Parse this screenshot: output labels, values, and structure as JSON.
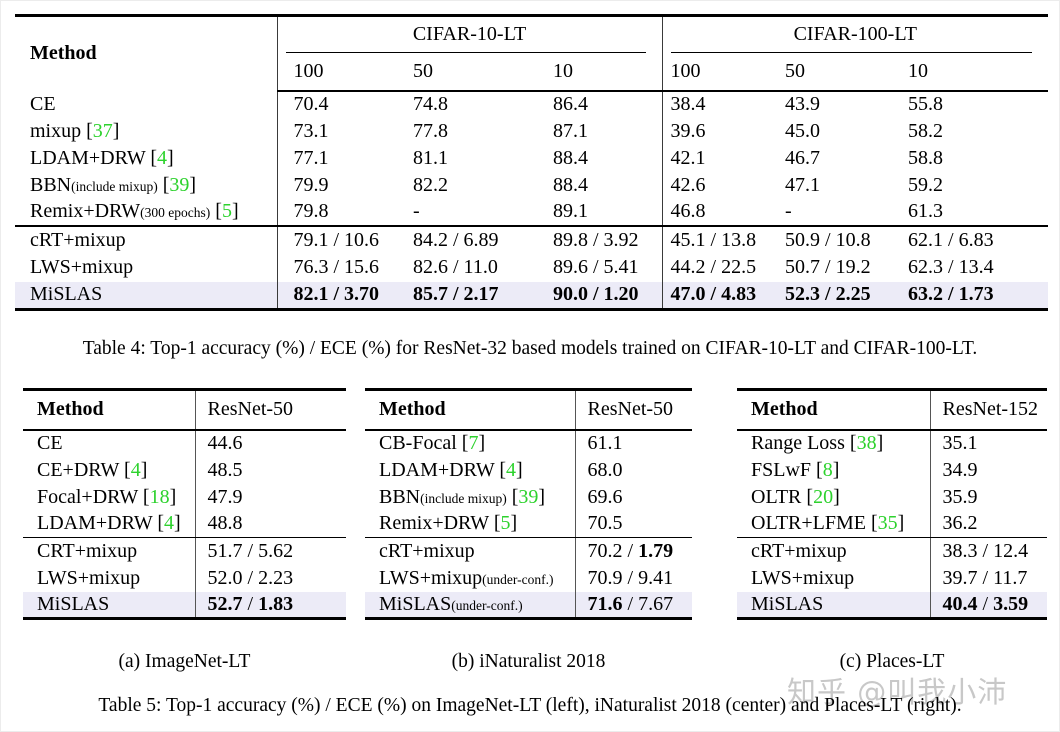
{
  "colors": {
    "citation_green": "#2dd22d",
    "highlight_row": "#ecebf7",
    "watermark_gray": "#c8c8c8"
  },
  "table4": {
    "method_label": "Method",
    "groups": [
      {
        "label": "CIFAR-10-LT",
        "cols": [
          "100",
          "50",
          "10"
        ]
      },
      {
        "label": "CIFAR-100-LT",
        "cols": [
          "100",
          "50",
          "10"
        ]
      }
    ],
    "section1": [
      {
        "method": "CE",
        "values": [
          "70.4",
          "74.8",
          "86.4",
          "38.4",
          "43.9",
          "55.8"
        ]
      },
      {
        "method": "mixup",
        "cite": "37",
        "values": [
          "73.1",
          "77.8",
          "87.1",
          "39.6",
          "45.0",
          "58.2"
        ]
      },
      {
        "method": "LDAM+DRW",
        "cite": "4",
        "values": [
          "77.1",
          "81.1",
          "88.4",
          "42.1",
          "46.7",
          "58.8"
        ]
      },
      {
        "method": "BBN",
        "sub": "(include mixup)",
        "cite": "39",
        "values": [
          "79.9",
          "82.2",
          "88.4",
          "42.6",
          "47.1",
          "59.2"
        ]
      },
      {
        "method": "Remix+DRW",
        "sub": "(300 epochs)",
        "cite": "5",
        "values": [
          "79.8",
          "-",
          "89.1",
          "46.8",
          "-",
          "61.3"
        ]
      }
    ],
    "section2": [
      {
        "method": "cRT+mixup",
        "values": [
          "79.1 / 10.6",
          "84.2 / 6.89",
          "89.8 / 3.92",
          "45.1 / 13.8",
          "50.9 / 10.8",
          "62.1 / 6.83"
        ]
      },
      {
        "method": "LWS+mixup",
        "values": [
          "76.3 / 15.6",
          "82.6 / 11.0",
          "89.6 / 5.41",
          "44.2 / 22.5",
          "50.7 / 19.2",
          "62.3 / 13.4"
        ]
      },
      {
        "method": "MiSLAS",
        "values": [
          "82.1 / 3.70",
          "85.7 / 2.17",
          "90.0 / 1.20",
          "47.0 / 4.83",
          "52.3 / 2.25",
          "63.2 / 1.73"
        ],
        "bold": true,
        "highlight": true
      }
    ],
    "caption": "Table 4: Top-1 accuracy (%) / ECE (%) for ResNet-32 based models trained on CIFAR-10-LT and CIFAR-100-LT."
  },
  "table5": {
    "subtables": [
      {
        "caption": "(a) ImageNet-LT",
        "method_label": "Method",
        "backbone_label": "ResNet-50",
        "section1": [
          {
            "method": "CE",
            "value": "44.6"
          },
          {
            "method": "CE+DRW",
            "cite": "4",
            "value": "48.5"
          },
          {
            "method": "Focal+DRW",
            "cite": "18",
            "value": "47.9"
          },
          {
            "method": "LDAM+DRW",
            "cite": "4",
            "value": "48.8"
          }
        ],
        "section2": [
          {
            "method": "CRT+mixup",
            "acc": "51.7",
            "ece": "5.62"
          },
          {
            "method": "LWS+mixup",
            "acc": "52.0",
            "ece": "2.23"
          },
          {
            "method": "MiSLAS",
            "acc": "52.7",
            "ece": "1.83",
            "acc_bold": true,
            "ece_bold": true,
            "highlight": true
          }
        ]
      },
      {
        "caption": "(b) iNaturalist 2018",
        "method_label": "Method",
        "backbone_label": "ResNet-50",
        "section1": [
          {
            "method": "CB-Focal",
            "cite": "7",
            "value": "61.1"
          },
          {
            "method": "LDAM+DRW",
            "cite": "4",
            "value": "68.0"
          },
          {
            "method": "BBN",
            "sub": "(include mixup)",
            "cite": "39",
            "value": "69.6"
          },
          {
            "method": "Remix+DRW",
            "cite": "5",
            "value": "70.5"
          }
        ],
        "section2": [
          {
            "method": "cRT+mixup",
            "acc": "70.2",
            "ece": "1.79",
            "ece_bold": true
          },
          {
            "method": "LWS+mixup",
            "sub": "(under-conf.)",
            "acc": "70.9",
            "ece": "9.41"
          },
          {
            "method": "MiSLAS",
            "sub": "(under-conf.)",
            "acc": "71.6",
            "ece": "7.67",
            "acc_bold": true,
            "highlight": true
          }
        ]
      },
      {
        "caption": "(c) Places-LT",
        "method_label": "Method",
        "backbone_label": "ResNet-152",
        "section1": [
          {
            "method": "Range Loss",
            "cite": "38",
            "value": "35.1"
          },
          {
            "method": "FSLwF",
            "cite": "8",
            "value": "34.9"
          },
          {
            "method": "OLTR",
            "cite": "20",
            "value": "35.9"
          },
          {
            "method": "OLTR+LFME",
            "cite": "35",
            "value": "36.2"
          }
        ],
        "section2": [
          {
            "method": "cRT+mixup",
            "acc": "38.3",
            "ece": "12.4"
          },
          {
            "method": "LWS+mixup",
            "acc": "39.7",
            "ece": "11.7"
          },
          {
            "method": "MiSLAS",
            "acc": "40.4",
            "ece": "3.59",
            "acc_bold": true,
            "ece_bold": true,
            "highlight": true
          }
        ]
      }
    ],
    "caption": "Table 5: Top-1 accuracy (%) / ECE (%) on ImageNet-LT (left), iNaturalist 2018 (center) and Places-LT (right)."
  },
  "watermark": "知乎 @叫我小沛"
}
